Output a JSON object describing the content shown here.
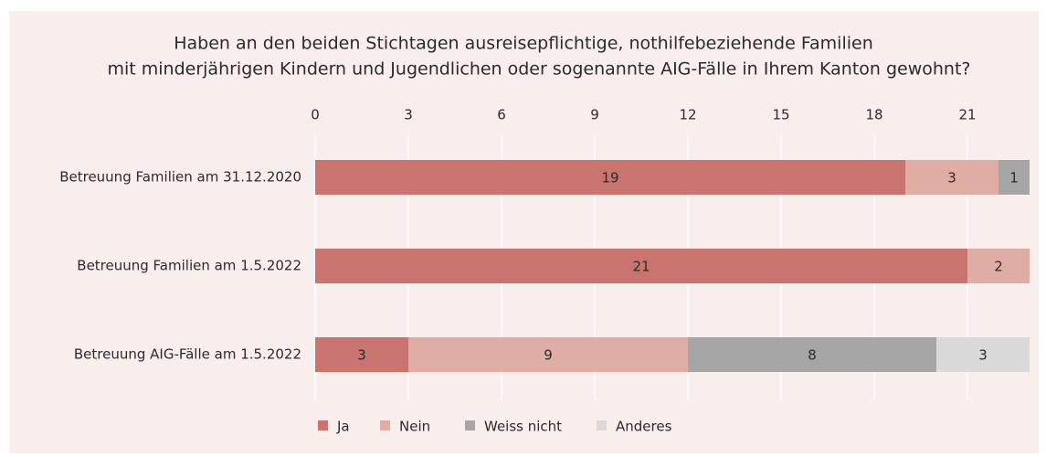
{
  "chart_data": {
    "type": "stacked_bar_horizontal",
    "title": [
      "Haben an den beiden Stichtagen ausreisepflichtige, nothilfebeziehende Familien",
      "mit minderjährigen Kindern und Jugendlichen oder sogenannte AIG-Fälle in Ihrem Kanton gewohnt?"
    ],
    "categories": [
      "Betreuung Familien am 31.12.2020",
      "Betreuung Familien am 1.5.2022",
      "Betreuung AIG-Fälle am 1.5.2022"
    ],
    "series": [
      {
        "name": "Ja",
        "color": "#c9746e",
        "values": [
          19,
          21,
          3
        ]
      },
      {
        "name": "Nein",
        "color": "#dfada4",
        "values": [
          3,
          2,
          9
        ]
      },
      {
        "name": "Weiss nicht",
        "color": "#a6a6a6",
        "values": [
          1,
          null,
          8
        ]
      },
      {
        "name": "Anderes",
        "color": "#d9d9d9",
        "values": [
          null,
          null,
          3
        ]
      }
    ],
    "xlim": [
      0,
      23
    ],
    "xticks": [
      0,
      3,
      6,
      9,
      12,
      15,
      18,
      21
    ],
    "grid": true,
    "legend": "bottom"
  }
}
